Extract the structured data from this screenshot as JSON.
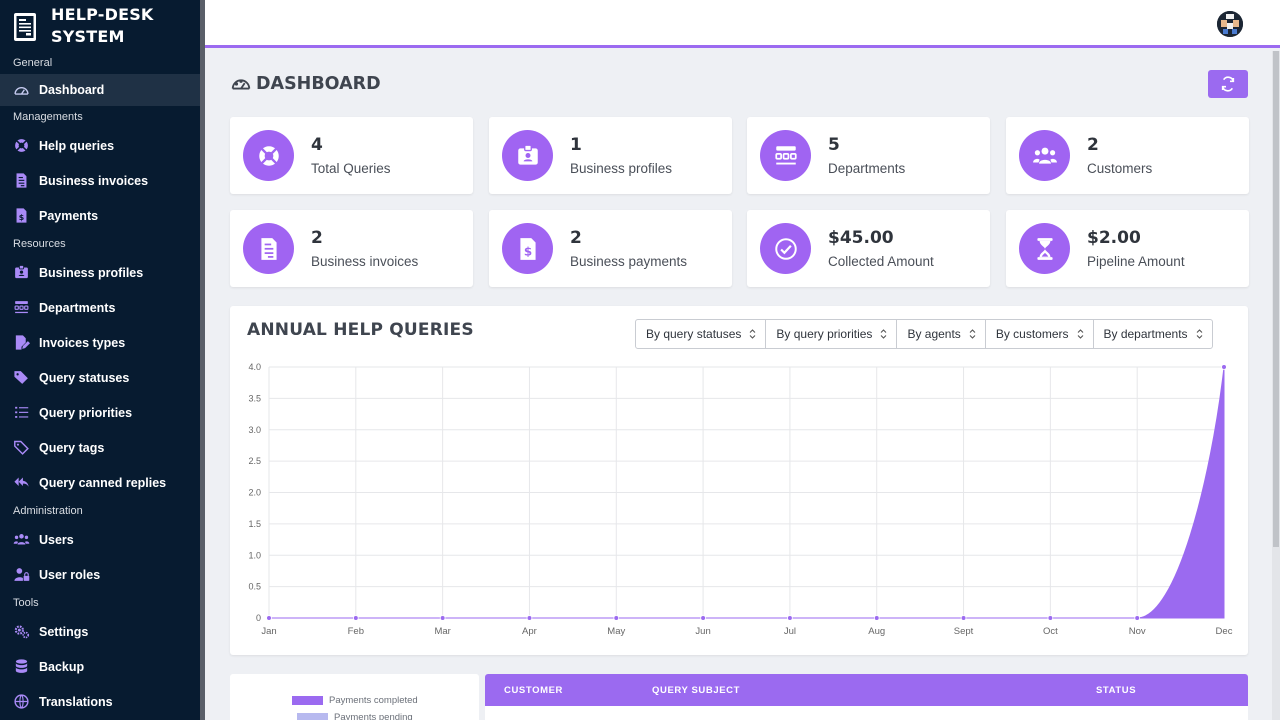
{
  "brand": {
    "line1": "HELP-DESK",
    "line2": "SYSTEM"
  },
  "sidebar": {
    "sections": [
      {
        "title": "General",
        "items": [
          {
            "label": "Dashboard",
            "icon": "gauge-icon",
            "active": true
          }
        ]
      },
      {
        "title": "Managements",
        "items": [
          {
            "label": "Help queries",
            "icon": "lifebuoy-icon"
          },
          {
            "label": "Business invoices",
            "icon": "invoice-icon"
          },
          {
            "label": "Payments",
            "icon": "dollar-file-icon"
          }
        ]
      },
      {
        "title": "Resources",
        "items": [
          {
            "label": "Business profiles",
            "icon": "id-badge-icon"
          },
          {
            "label": "Departments",
            "icon": "departments-icon"
          },
          {
            "label": "Invoices types",
            "icon": "edit-file-icon"
          },
          {
            "label": "Query statuses",
            "icon": "tags-icon"
          },
          {
            "label": "Query priorities",
            "icon": "list-icon"
          },
          {
            "label": "Query tags",
            "icon": "tag-icon"
          },
          {
            "label": "Query canned replies",
            "icon": "reply-all-icon"
          }
        ]
      },
      {
        "title": "Administration",
        "items": [
          {
            "label": "Users",
            "icon": "users-icon"
          },
          {
            "label": "User roles",
            "icon": "user-lock-icon"
          }
        ]
      },
      {
        "title": "Tools",
        "items": [
          {
            "label": "Settings",
            "icon": "gears-icon"
          },
          {
            "label": "Backup",
            "icon": "database-icon"
          },
          {
            "label": "Translations",
            "icon": "language-icon"
          }
        ]
      }
    ]
  },
  "page": {
    "title": "DASHBOARD"
  },
  "colors": {
    "accent": "#9b6af0",
    "sidebar": "#071b30",
    "area": "#9b6af0",
    "pending": "#b7b9ef"
  },
  "stats": [
    {
      "value": "4",
      "label": "Total Queries",
      "icon": "lifebuoy-icon"
    },
    {
      "value": "1",
      "label": "Business profiles",
      "icon": "id-badge-icon"
    },
    {
      "value": "5",
      "label": "Departments",
      "icon": "departments-icon"
    },
    {
      "value": "2",
      "label": "Customers",
      "icon": "users-icon"
    },
    {
      "value": "2",
      "label": "Business invoices",
      "icon": "invoice-icon"
    },
    {
      "value": "2",
      "label": "Business payments",
      "icon": "dollar-file-icon"
    },
    {
      "value": "$45.00",
      "label": "Collected Amount",
      "icon": "check-circle-icon"
    },
    {
      "value": "$2.00",
      "label": "Pipeline Amount",
      "icon": "hourglass-icon"
    }
  ],
  "chart_panel": {
    "title": "ANNUAL HELP QUERIES",
    "filters": [
      "By query statuses",
      "By query priorities",
      "By agents",
      "By customers",
      "By departments"
    ]
  },
  "chart_data": {
    "type": "area",
    "categories": [
      "Jan",
      "Feb",
      "Mar",
      "Apr",
      "May",
      "Jun",
      "Jul",
      "Aug",
      "Sept",
      "Oct",
      "Nov",
      "Dec"
    ],
    "values": [
      0,
      0,
      0,
      0,
      0,
      0,
      0,
      0,
      0,
      0,
      0,
      4
    ],
    "yticks": [
      "0",
      "0.5",
      "1.0",
      "1.5",
      "2.0",
      "2.5",
      "3.0",
      "3.5",
      "4.0"
    ],
    "ylim": [
      0,
      4
    ],
    "grid": true,
    "title": "",
    "xlabel": "",
    "ylabel": ""
  },
  "legend": {
    "items": [
      "Payments completed",
      "Payments pending"
    ]
  },
  "table": {
    "columns": [
      "CUSTOMER",
      "QUERY SUBJECT",
      "STATUS"
    ]
  }
}
